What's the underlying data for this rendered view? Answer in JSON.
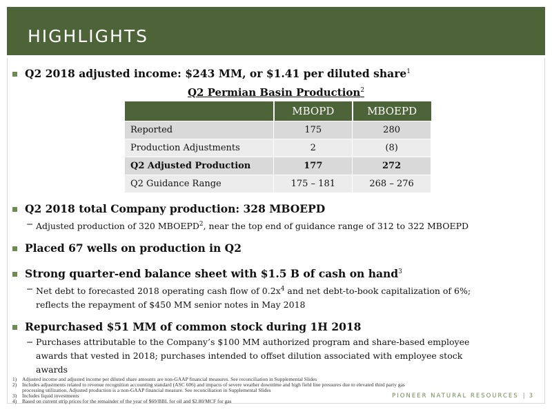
{
  "header": {
    "title": "HIGHLIGHTS"
  },
  "bullets": {
    "b1": {
      "text": "Q2 2018 adjusted income: $243 MM, or $1.41 per diluted share",
      "sup": "1"
    },
    "b2": {
      "text": "Q2 2018 total Company production: 328 MBOEPD",
      "sub1": {
        "a": "Adjusted production of 320 MBOEPD",
        "sup": "2",
        "b": ", near the top end of guidance range of 312 to 322 MBOEPD"
      }
    },
    "b3": {
      "text": "Placed 67 wells on production in Q2"
    },
    "b4": {
      "text": "Strong quarter-end balance sheet with $1.5 B of cash on hand",
      "sup": "3",
      "sub1": {
        "a": "Net debt to forecasted 2018 operating cash flow of 0.2x",
        "sup": "4",
        "b": " and net debt-to-book capitalization of 6%;",
        "line2": "reflects the repayment of $450 MM senior notes in May 2018"
      }
    },
    "b5": {
      "text": "Repurchased $51 MM of common stock during 1H 2018",
      "sub1": {
        "line1": "Purchases attributable to the Company’s $100 MM authorized program and share-based employee",
        "line2": "awards that vested in 2018; purchases intended to offset dilution associated with employee stock",
        "line3": "awards"
      }
    }
  },
  "table": {
    "title": "Q2 Permian Basin Production",
    "title_sup": "2",
    "headers": [
      "",
      "MBOPD",
      "MBOEPD"
    ],
    "rows": [
      {
        "label": "Reported",
        "mbopd": "175",
        "mboepd": "280"
      },
      {
        "label": "Production Adjustments",
        "mbopd": "2",
        "mboepd": "(8)"
      },
      {
        "label": "Q2 Adjusted Production",
        "mbopd": "177",
        "mboepd": "272"
      },
      {
        "label": "Q2 Guidance Range",
        "mbopd": "175 – 181",
        "mboepd": "268 – 276"
      }
    ]
  },
  "footnotes": [
    {
      "n": "1)",
      "text": "Adjusted income and adjusted income per diluted share amounts are non-GAAP financial measures.  See reconciliation in Supplemental Slides"
    },
    {
      "n": "2)",
      "text": "Includes adjustments related to revenue recognition accounting standard (ASC 606) and impacts of severe weather downtime and high field line pressures due to elevated third party gas processing utilization.  Adjusted production is a non-GAAP financial measure. See reconciliation in Supplemental Slides"
    },
    {
      "n": "3)",
      "text": "Includes liquid investments"
    },
    {
      "n": "4)",
      "text": "Based on current strip prices for the remainder of the year of $69/BBL for oil and $2.80/MCF for gas"
    }
  ],
  "brand": {
    "name": "PIONEER NATURAL RESOURCES",
    "separator": "|",
    "page": "3"
  },
  "colors": {
    "header_green": "#4d6338",
    "bullet_green": "#6e8a50"
  }
}
